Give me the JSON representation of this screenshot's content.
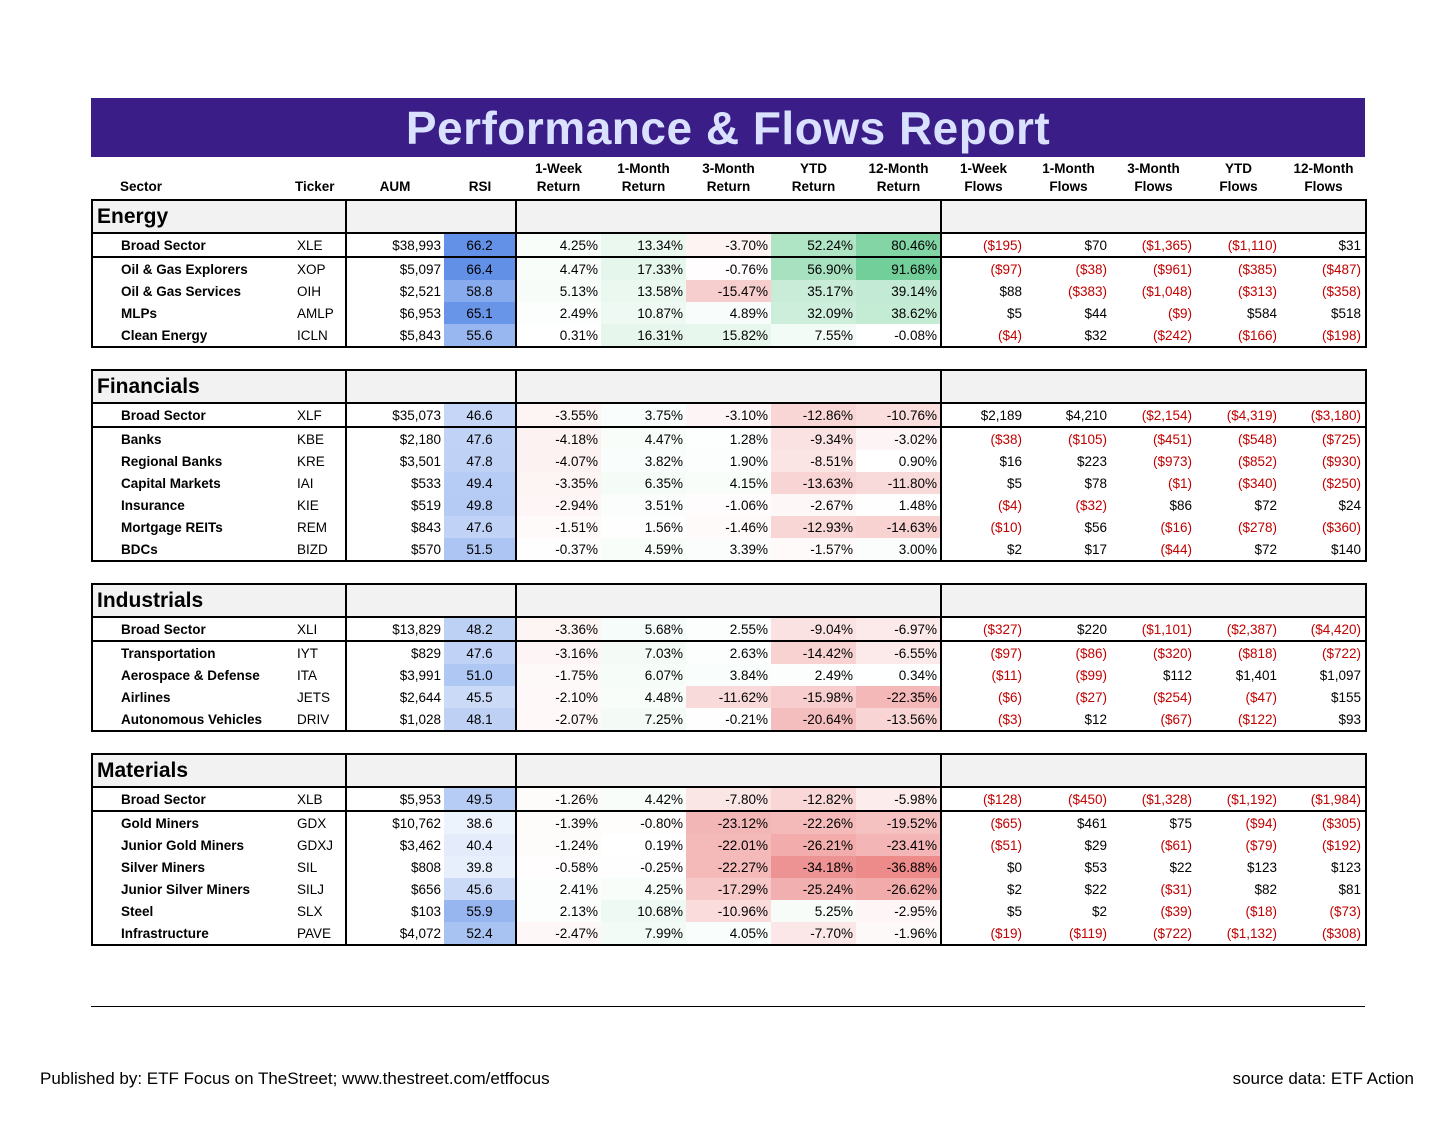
{
  "title": "Performance & Flows Report",
  "headers": [
    [
      "",
      "Sector"
    ],
    [
      "",
      "Ticker"
    ],
    [
      "",
      "AUM"
    ],
    [
      "",
      "RSI"
    ],
    [
      "1-Week",
      "Return"
    ],
    [
      "1-Month",
      "Return"
    ],
    [
      "3-Month",
      "Return"
    ],
    [
      "YTD",
      "Return"
    ],
    [
      "12-Month",
      "Return"
    ],
    [
      "1-Week",
      "Flows"
    ],
    [
      "1-Month",
      "Flows"
    ],
    [
      "3-Month",
      "Flows"
    ],
    [
      "YTD",
      "Flows"
    ],
    [
      "12-Month",
      "Flows"
    ]
  ],
  "sections": [
    {
      "name": "Energy",
      "rows": [
        [
          "Broad Sector",
          "XLE",
          "$38,993",
          "66.2",
          "4.25%",
          "13.34%",
          "-3.70%",
          "52.24%",
          "80.46%",
          "($195)",
          "$70",
          "($1,365)",
          "($1,110)",
          "$31"
        ],
        [
          "Oil & Gas Explorers",
          "XOP",
          "$5,097",
          "66.4",
          "4.47%",
          "17.33%",
          "-0.76%",
          "56.90%",
          "91.68%",
          "($97)",
          "($38)",
          "($961)",
          "($385)",
          "($487)"
        ],
        [
          "Oil & Gas Services",
          "OIH",
          "$2,521",
          "58.8",
          "5.13%",
          "13.58%",
          "-15.47%",
          "35.17%",
          "39.14%",
          "$88",
          "($383)",
          "($1,048)",
          "($313)",
          "($358)"
        ],
        [
          "MLPs",
          "AMLP",
          "$6,953",
          "65.1",
          "2.49%",
          "10.87%",
          "4.89%",
          "32.09%",
          "38.62%",
          "$5",
          "$44",
          "($9)",
          "$584",
          "$518"
        ],
        [
          "Clean Energy",
          "ICLN",
          "$5,843",
          "55.6",
          "0.31%",
          "16.31%",
          "15.82%",
          "7.55%",
          "-0.08%",
          "($4)",
          "$32",
          "($242)",
          "($166)",
          "($198)"
        ]
      ]
    },
    {
      "name": "Financials",
      "rows": [
        [
          "Broad Sector",
          "XLF",
          "$35,073",
          "46.6",
          "-3.55%",
          "3.75%",
          "-3.10%",
          "-12.86%",
          "-10.76%",
          "$2,189",
          "$4,210",
          "($2,154)",
          "($4,319)",
          "($3,180)"
        ],
        [
          "Banks",
          "KBE",
          "$2,180",
          "47.6",
          "-4.18%",
          "4.47%",
          "1.28%",
          "-9.34%",
          "-3.02%",
          "($38)",
          "($105)",
          "($451)",
          "($548)",
          "($725)"
        ],
        [
          "Regional Banks",
          "KRE",
          "$3,501",
          "47.8",
          "-4.07%",
          "3.82%",
          "1.90%",
          "-8.51%",
          "0.90%",
          "$16",
          "$223",
          "($973)",
          "($852)",
          "($930)"
        ],
        [
          "Capital Markets",
          "IAI",
          "$533",
          "49.4",
          "-3.35%",
          "6.35%",
          "4.15%",
          "-13.63%",
          "-11.80%",
          "$5",
          "$78",
          "($1)",
          "($340)",
          "($250)"
        ],
        [
          "Insurance",
          "KIE",
          "$519",
          "49.8",
          "-2.94%",
          "3.51%",
          "-1.06%",
          "-2.67%",
          "1.48%",
          "($4)",
          "($32)",
          "$86",
          "$72",
          "$24"
        ],
        [
          "Mortgage REITs",
          "REM",
          "$843",
          "47.6",
          "-1.51%",
          "1.56%",
          "-1.46%",
          "-12.93%",
          "-14.63%",
          "($10)",
          "$56",
          "($16)",
          "($278)",
          "($360)"
        ],
        [
          "BDCs",
          "BIZD",
          "$570",
          "51.5",
          "-0.37%",
          "4.59%",
          "3.39%",
          "-1.57%",
          "3.00%",
          "$2",
          "$17",
          "($44)",
          "$72",
          "$140"
        ]
      ]
    },
    {
      "name": "Industrials",
      "rows": [
        [
          "Broad Sector",
          "XLI",
          "$13,829",
          "48.2",
          "-3.36%",
          "5.68%",
          "2.55%",
          "-9.04%",
          "-6.97%",
          "($327)",
          "$220",
          "($1,101)",
          "($2,387)",
          "($4,420)"
        ],
        [
          "Transportation",
          "IYT",
          "$829",
          "47.6",
          "-3.16%",
          "7.03%",
          "2.63%",
          "-14.42%",
          "-6.55%",
          "($97)",
          "($86)",
          "($320)",
          "($818)",
          "($722)"
        ],
        [
          "Aerospace & Defense",
          "ITA",
          "$3,991",
          "51.0",
          "-1.75%",
          "6.07%",
          "3.84%",
          "2.49%",
          "0.34%",
          "($11)",
          "($99)",
          "$112",
          "$1,401",
          "$1,097"
        ],
        [
          "Airlines",
          "JETS",
          "$2,644",
          "45.5",
          "-2.10%",
          "4.48%",
          "-11.62%",
          "-15.98%",
          "-22.35%",
          "($6)",
          "($27)",
          "($254)",
          "($47)",
          "$155"
        ],
        [
          "Autonomous Vehicles",
          "DRIV",
          "$1,028",
          "48.1",
          "-2.07%",
          "7.25%",
          "-0.21%",
          "-20.64%",
          "-13.56%",
          "($3)",
          "$12",
          "($67)",
          "($122)",
          "$93"
        ]
      ]
    },
    {
      "name": "Materials",
      "rows": [
        [
          "Broad Sector",
          "XLB",
          "$5,953",
          "49.5",
          "-1.26%",
          "4.42%",
          "-7.80%",
          "-12.82%",
          "-5.98%",
          "($128)",
          "($450)",
          "($1,328)",
          "($1,192)",
          "($1,984)"
        ],
        [
          "Gold Miners",
          "GDX",
          "$10,762",
          "38.6",
          "-1.39%",
          "-0.80%",
          "-23.12%",
          "-22.26%",
          "-19.52%",
          "($65)",
          "$461",
          "$75",
          "($94)",
          "($305)"
        ],
        [
          "Junior Gold Miners",
          "GDXJ",
          "$3,462",
          "40.4",
          "-1.24%",
          "0.19%",
          "-22.01%",
          "-26.21%",
          "-23.41%",
          "($51)",
          "$29",
          "($61)",
          "($79)",
          "($192)"
        ],
        [
          "Silver Miners",
          "SIL",
          "$808",
          "39.8",
          "-0.58%",
          "-0.25%",
          "-22.27%",
          "-34.18%",
          "-36.88%",
          "$0",
          "$53",
          "$22",
          "$123",
          "$123"
        ],
        [
          "Junior Silver Miners",
          "SILJ",
          "$656",
          "45.6",
          "2.41%",
          "4.25%",
          "-17.29%",
          "-25.24%",
          "-26.62%",
          "$2",
          "$22",
          "($31)",
          "$82",
          "$81"
        ],
        [
          "Steel",
          "SLX",
          "$103",
          "55.9",
          "2.13%",
          "10.68%",
          "-10.96%",
          "5.25%",
          "-2.95%",
          "$5",
          "$2",
          "($39)",
          "($18)",
          "($73)"
        ],
        [
          "Infrastructure",
          "PAVE",
          "$4,072",
          "52.4",
          "-2.47%",
          "7.99%",
          "4.05%",
          "-7.70%",
          "-1.96%",
          "($19)",
          "($119)",
          "($722)",
          "($1,132)",
          "($308)"
        ]
      ]
    }
  ],
  "footer": {
    "left": "Published by: ETF Focus on TheStreet; www.thestreet.com/etffocus",
    "right": "source data: ETF Action"
  }
}
